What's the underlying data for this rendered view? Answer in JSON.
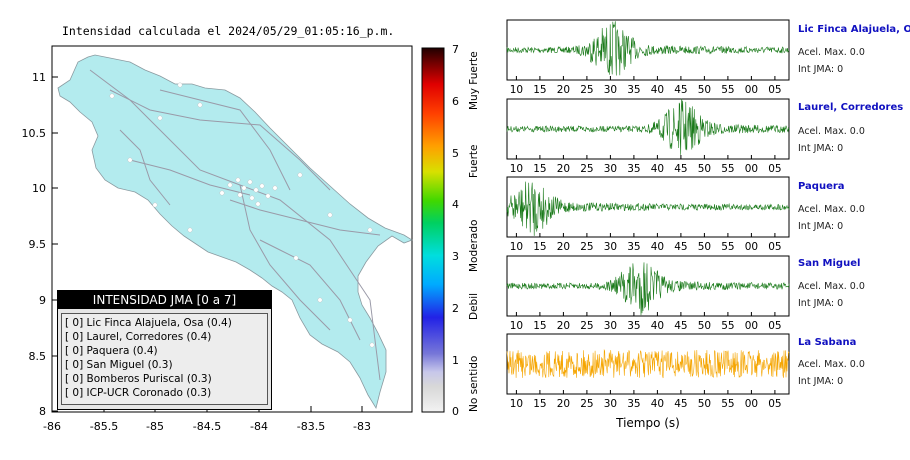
{
  "map": {
    "title": "Intensidad calculada el 2024/05/29_01:05:16_p.m.",
    "x_ticks": [
      "-86",
      "-85.5",
      "-85",
      "-84.5",
      "-84",
      "-83.5",
      "-83"
    ],
    "y_ticks": [
      "11",
      "10.5",
      "10",
      "9.5",
      "9",
      "8.5",
      "8"
    ]
  },
  "colorbar": {
    "ticks": [
      "0",
      "1",
      "2",
      "3",
      "4",
      "5",
      "6",
      "7"
    ],
    "labels": [
      "No sentido",
      "Debil",
      "Moderado",
      "Fuerte",
      "Muy Fuerte"
    ]
  },
  "legend": {
    "title": "INTENSIDAD JMA [0 a 7]",
    "rows": [
      "[ 0]  Lic Finca Alajuela, Osa (0.4)",
      "[ 0]  Laurel, Corredores (0.4)",
      "[ 0]  Paquera (0.4)",
      "[ 0]  San Miguel (0.3)",
      "[ 0]  Bomberos Puriscal (0.3)",
      "[ 0]  ICP-UCR Coronado (0.3)"
    ]
  },
  "stations": [
    {
      "name": "Lic Finca Alajuela, Osa",
      "acel": "Acel. Max. 0.0",
      "jma": "Int JMA: 0",
      "color": "#1a7a1a"
    },
    {
      "name": "Laurel, Corredores",
      "acel": "Acel. Max. 0.0",
      "jma": "Int JMA: 0",
      "color": "#1a7a1a"
    },
    {
      "name": "Paquera",
      "acel": "Acel. Max. 0.0",
      "jma": "Int JMA: 0",
      "color": "#1a7a1a"
    },
    {
      "name": "San Miguel",
      "acel": "Acel. Max. 0.0",
      "jma": "Int JMA: 0",
      "color": "#1a7a1a"
    },
    {
      "name": "La Sabana",
      "acel": "Acel. Max. 0.0",
      "jma": "Int JMA: 0",
      "color": "#f5a500"
    }
  ],
  "chart_data": [
    {
      "type": "map",
      "title": "Intensidad calculada el 2024/05/29_01:05:16_p.m.",
      "xlim": [
        -86,
        -82.5
      ],
      "ylim": [
        8,
        11.3
      ],
      "legend": [
        "Lic Finca Alajuela, Osa (0.4)",
        "Laurel, Corredores (0.4)",
        "Paquera (0.4)",
        "San Miguel (0.3)",
        "Bomberos Puriscal (0.3)",
        "ICP-UCR Coronado (0.3)"
      ]
    },
    {
      "type": "line",
      "xlabel": "Tiempo (s)",
      "x_tick_labels": [
        "10",
        "15",
        "20",
        "25",
        "30",
        "35",
        "40",
        "45",
        "50",
        "55",
        "00",
        "05"
      ],
      "series": [
        {
          "name": "Lic Finca Alajuela, Osa",
          "peak_time": 30
        },
        {
          "name": "Laurel, Corredores",
          "peak_time": 45
        },
        {
          "name": "Paquera",
          "peak_time": 13
        },
        {
          "name": "San Miguel",
          "peak_time": 36
        },
        {
          "name": "La Sabana",
          "peak_time": null
        }
      ]
    }
  ]
}
